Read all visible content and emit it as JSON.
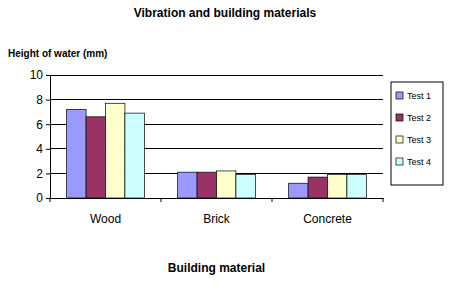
{
  "chart_data": {
    "type": "bar",
    "title": "Vibration and building materials",
    "y_label": "Height of water (mm)",
    "x_label": "Building material",
    "categories": [
      "Wood",
      "Brick",
      "Concrete"
    ],
    "series": [
      {
        "name": "Test 1",
        "color": "#9999ff",
        "values": [
          7.2,
          2.1,
          1.2
        ]
      },
      {
        "name": "Test 2",
        "color": "#993366",
        "values": [
          6.6,
          2.1,
          1.7
        ]
      },
      {
        "name": "Test 3",
        "color": "#ffffcc",
        "values": [
          7.7,
          2.2,
          1.9
        ]
      },
      {
        "name": "Test 4",
        "color": "#ccffff",
        "values": [
          6.9,
          1.9,
          1.9
        ]
      }
    ],
    "ylim": [
      0,
      10
    ],
    "yticks": [
      0,
      2,
      4,
      6,
      8,
      10
    ],
    "grid": true,
    "legend": "right"
  }
}
